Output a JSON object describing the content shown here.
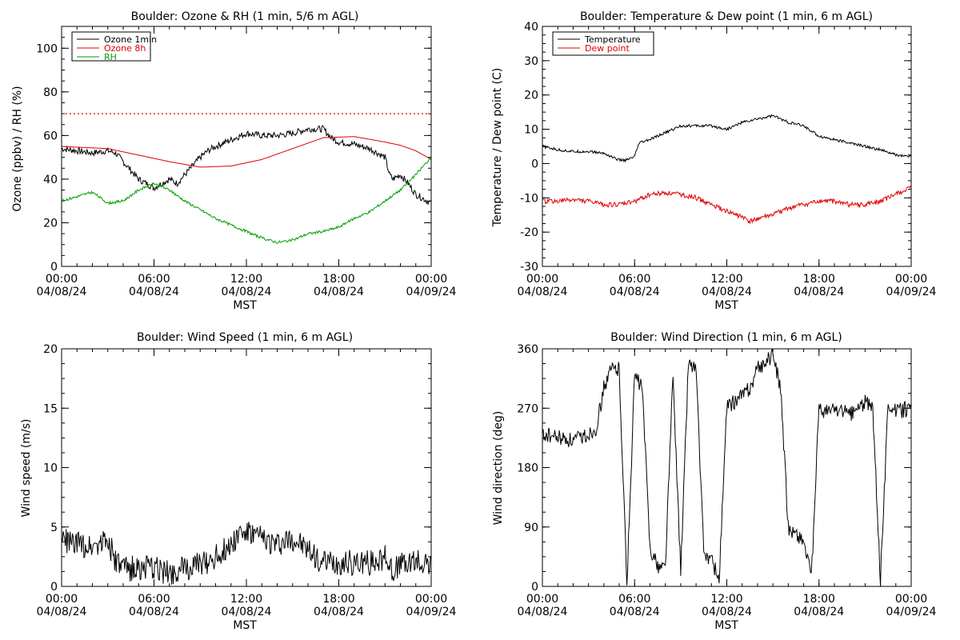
{
  "colors": {
    "black": "#000000",
    "red": "#e00000",
    "green": "#00a000"
  },
  "chart_data": [
    {
      "type": "line",
      "title": "Boulder: Ozone & RH (1 min, 5/6 m AGL)",
      "xlabel": "MST",
      "ylabel": "Ozone (ppbv) / RH (%)",
      "xlim": [
        0,
        24
      ],
      "ylim": [
        0,
        110
      ],
      "yticks": [
        0,
        20,
        40,
        60,
        80,
        100
      ],
      "xticks": [
        {
          "t": 0,
          "time": "00:00",
          "date": "04/08/24"
        },
        {
          "t": 6,
          "time": "06:00",
          "date": "04/08/24"
        },
        {
          "t": 12,
          "time": "12:00",
          "date": "04/08/24"
        },
        {
          "t": 18,
          "time": "18:00",
          "date": "04/08/24"
        },
        {
          "t": 24,
          "time": "00:00",
          "date": "04/09/24"
        }
      ],
      "grid": false,
      "legend": "top-left",
      "reference_line": {
        "y": 70,
        "color": "#e00000",
        "style": "dotted"
      },
      "series": [
        {
          "name": "Ozone 1min",
          "color": "#000000",
          "noise": 1.5,
          "x": [
            0,
            1,
            2,
            3,
            3.5,
            4,
            4.5,
            5,
            5.5,
            6,
            6.5,
            7,
            7.5,
            8,
            8.5,
            9,
            9.5,
            10,
            11,
            12,
            13,
            14,
            15,
            16,
            17,
            17.5,
            18,
            19,
            20,
            21,
            21.3,
            21.5,
            22,
            22.5,
            23,
            24
          ],
          "y": [
            54,
            53,
            52,
            53,
            52,
            48,
            44,
            40,
            38,
            36,
            38,
            40,
            38,
            42,
            46,
            50,
            53,
            55,
            58,
            61,
            60,
            60,
            61,
            63,
            63,
            59,
            57,
            56,
            54,
            50,
            42,
            40,
            42,
            38,
            33,
            29
          ]
        },
        {
          "name": "Ozone 8h",
          "color": "#e00000",
          "noise": 0,
          "x": [
            0,
            3,
            5,
            7,
            9,
            11,
            13,
            15,
            17,
            19,
            21,
            22,
            23,
            24
          ],
          "y": [
            55,
            54,
            51,
            48,
            45.5,
            46,
            49,
            54,
            59,
            59.5,
            57,
            55.5,
            53,
            49
          ]
        },
        {
          "name": "RH",
          "color": "#00a000",
          "noise": 0.6,
          "x": [
            0,
            1,
            2,
            3,
            4,
            5,
            6,
            7,
            8,
            9,
            10,
            11,
            12,
            13,
            14,
            15,
            16,
            17,
            18,
            19,
            20,
            21,
            22,
            23,
            24
          ],
          "y": [
            30,
            32,
            34,
            29,
            30,
            35,
            38,
            35,
            30,
            26,
            22,
            19,
            16,
            13,
            11,
            12,
            15,
            16,
            18,
            22,
            25,
            30,
            35,
            42,
            50
          ]
        }
      ]
    },
    {
      "type": "line",
      "title": "Boulder: Temperature & Dew point (1 min, 6 m AGL)",
      "xlabel": "MST",
      "ylabel": "Temperature / Dew point (C)",
      "xlim": [
        0,
        24
      ],
      "ylim": [
        -30,
        40
      ],
      "yticks": [
        -30,
        -20,
        -10,
        0,
        10,
        20,
        30,
        40
      ],
      "xticks": [
        {
          "t": 0,
          "time": "00:00",
          "date": "04/08/24"
        },
        {
          "t": 6,
          "time": "06:00",
          "date": "04/08/24"
        },
        {
          "t": 12,
          "time": "12:00",
          "date": "04/08/24"
        },
        {
          "t": 18,
          "time": "18:00",
          "date": "04/08/24"
        },
        {
          "t": 24,
          "time": "00:00",
          "date": "04/09/24"
        }
      ],
      "grid": false,
      "legend": "top-left",
      "series": [
        {
          "name": "Temperature",
          "color": "#000000",
          "noise": 0.4,
          "x": [
            0,
            1,
            2,
            3,
            4,
            5,
            5.5,
            6,
            6.3,
            7,
            8,
            9,
            10,
            11,
            12,
            13,
            14,
            15,
            16,
            17,
            18,
            19,
            20,
            21,
            22,
            23,
            24
          ],
          "y": [
            5,
            4,
            3.5,
            3.5,
            3,
            1,
            1,
            2,
            6,
            7,
            9,
            11,
            11,
            11,
            10,
            12,
            13,
            14,
            12,
            11,
            8,
            7,
            6,
            5,
            4,
            2.5,
            2
          ]
        },
        {
          "name": "Dew point",
          "color": "#e00000",
          "noise": 0.7,
          "x": [
            0,
            1,
            2,
            3,
            4,
            5,
            6,
            7,
            8,
            9,
            10,
            11,
            12,
            13,
            13.5,
            14,
            15,
            16,
            17,
            18,
            19,
            20,
            21,
            22,
            23,
            24
          ],
          "y": [
            -11,
            -11,
            -10.5,
            -11,
            -12,
            -12,
            -11,
            -9,
            -8.5,
            -9,
            -10,
            -12,
            -14,
            -15.5,
            -17,
            -16,
            -15,
            -13,
            -12,
            -11,
            -11,
            -12,
            -12,
            -11,
            -9,
            -7
          ]
        }
      ]
    },
    {
      "type": "line",
      "title": "Boulder: Wind Speed (1 min, 6 m AGL)",
      "xlabel": "MST",
      "ylabel": "Wind speed (m/s)",
      "xlim": [
        0,
        24
      ],
      "ylim": [
        0,
        20
      ],
      "yticks": [
        0,
        5,
        10,
        15,
        20
      ],
      "xticks": [
        {
          "t": 0,
          "time": "00:00",
          "date": "04/08/24"
        },
        {
          "t": 6,
          "time": "06:00",
          "date": "04/08/24"
        },
        {
          "t": 12,
          "time": "12:00",
          "date": "04/08/24"
        },
        {
          "t": 18,
          "time": "18:00",
          "date": "04/08/24"
        },
        {
          "t": 24,
          "time": "00:00",
          "date": "04/09/24"
        }
      ],
      "grid": false,
      "series": [
        {
          "name": "",
          "color": "#000000",
          "noise": 1.1,
          "clip": true,
          "x": [
            0,
            1,
            2,
            3,
            3.5,
            4,
            5,
            6,
            7,
            8,
            9,
            10,
            11,
            11.5,
            12,
            13,
            14,
            15,
            16,
            17,
            18,
            19,
            20,
            21,
            21.5,
            22,
            23,
            24
          ],
          "y": [
            4,
            3.5,
            3.5,
            4,
            2,
            1.5,
            1.5,
            1.5,
            1.2,
            1.5,
            1.8,
            2.5,
            3.5,
            4.5,
            4.5,
            4,
            3.5,
            4,
            3,
            2,
            2,
            2,
            2,
            2.5,
            1.5,
            1.8,
            2,
            2
          ]
        }
      ]
    },
    {
      "type": "line",
      "title": "Boulder: Wind Direction (1 min, 6 m AGL)",
      "xlabel": "MST",
      "ylabel": "Wind direction (deg)",
      "xlim": [
        0,
        24
      ],
      "ylim": [
        0,
        360
      ],
      "yticks": [
        0,
        90,
        180,
        270,
        360
      ],
      "xticks": [
        {
          "t": 0,
          "time": "00:00",
          "date": "04/08/24"
        },
        {
          "t": 6,
          "time": "06:00",
          "date": "04/08/24"
        },
        {
          "t": 12,
          "time": "12:00",
          "date": "04/08/24"
        },
        {
          "t": 18,
          "time": "18:00",
          "date": "04/08/24"
        },
        {
          "t": 24,
          "time": "00:00",
          "date": "04/09/24"
        }
      ],
      "grid": false,
      "series": [
        {
          "name": "",
          "color": "#000000",
          "noise": 12,
          "clip": true,
          "x": [
            0,
            1,
            2,
            3,
            3.5,
            4,
            4.5,
            5,
            5.5,
            6,
            6.5,
            7,
            7.5,
            8,
            8.5,
            9,
            9.5,
            10,
            10.5,
            11,
            11.5,
            12,
            12.5,
            13,
            13.5,
            14,
            14.5,
            15,
            15.5,
            16,
            16.5,
            17,
            17.5,
            18,
            18.5,
            19,
            20,
            21,
            21.5,
            22,
            22.5,
            23,
            24
          ],
          "y": [
            230,
            225,
            220,
            230,
            240,
            300,
            330,
            330,
            5,
            320,
            300,
            60,
            30,
            30,
            320,
            20,
            340,
            330,
            50,
            40,
            10,
            270,
            280,
            290,
            300,
            330,
            340,
            350,
            300,
            90,
            80,
            70,
            10,
            270,
            265,
            270,
            260,
            280,
            270,
            10,
            280,
            265,
            270
          ]
        }
      ]
    }
  ],
  "legends": [
    {
      "items": [
        "Ozone 1min",
        "Ozone 8h",
        "RH"
      ]
    },
    {
      "items": [
        "Temperature",
        "Dew point"
      ]
    }
  ]
}
